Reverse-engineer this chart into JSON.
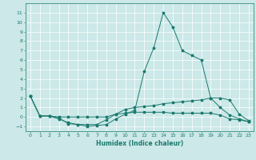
{
  "x": [
    0,
    1,
    2,
    3,
    4,
    5,
    6,
    7,
    8,
    9,
    10,
    11,
    12,
    13,
    14,
    15,
    16,
    17,
    18,
    19,
    20,
    21,
    22,
    23
  ],
  "series": [
    [
      2.2,
      0.1,
      0.1,
      -0.1,
      -0.7,
      -0.8,
      -0.8,
      -0.8,
      -0.3,
      0.3,
      0.4,
      0.5,
      0.5,
      0.5,
      0.5,
      0.4,
      0.4,
      0.4,
      0.4,
      0.4,
      0.2,
      -0.2,
      -0.3,
      -0.5
    ],
    [
      2.2,
      0.1,
      0.1,
      -0.2,
      -0.6,
      -0.8,
      -1.0,
      -0.9,
      -0.8,
      -0.2,
      0.3,
      0.7,
      4.8,
      7.3,
      11.0,
      9.5,
      7.0,
      6.5,
      6.0,
      2.0,
      1.0,
      0.2,
      -0.2,
      -0.5
    ],
    [
      2.2,
      0.1,
      0.1,
      0.0,
      0.0,
      0.0,
      0.0,
      0.0,
      0.0,
      0.3,
      0.8,
      1.0,
      1.1,
      1.2,
      1.4,
      1.5,
      1.6,
      1.7,
      1.8,
      2.0,
      2.0,
      1.8,
      0.3,
      -0.4
    ]
  ],
  "line_color": "#1a7a6e",
  "marker": "*",
  "markersize": 2.5,
  "linewidth": 0.7,
  "xlabel": "Humidex (Indice chaleur)",
  "xlabel_fontsize": 5.5,
  "xlabel_color": "#1a7a6e",
  "ylim": [
    -1.5,
    12
  ],
  "xlim": [
    -0.5,
    23.5
  ],
  "yticks": [
    -1,
    0,
    1,
    2,
    3,
    4,
    5,
    6,
    7,
    8,
    9,
    10,
    11
  ],
  "xticks": [
    0,
    1,
    2,
    3,
    4,
    5,
    6,
    7,
    8,
    9,
    10,
    11,
    12,
    13,
    14,
    15,
    16,
    17,
    18,
    19,
    20,
    21,
    22,
    23
  ],
  "bg_color": "#cce8e8",
  "grid_color": "#ffffff",
  "tick_color": "#1a7a6e",
  "tick_fontsize": 4.5
}
